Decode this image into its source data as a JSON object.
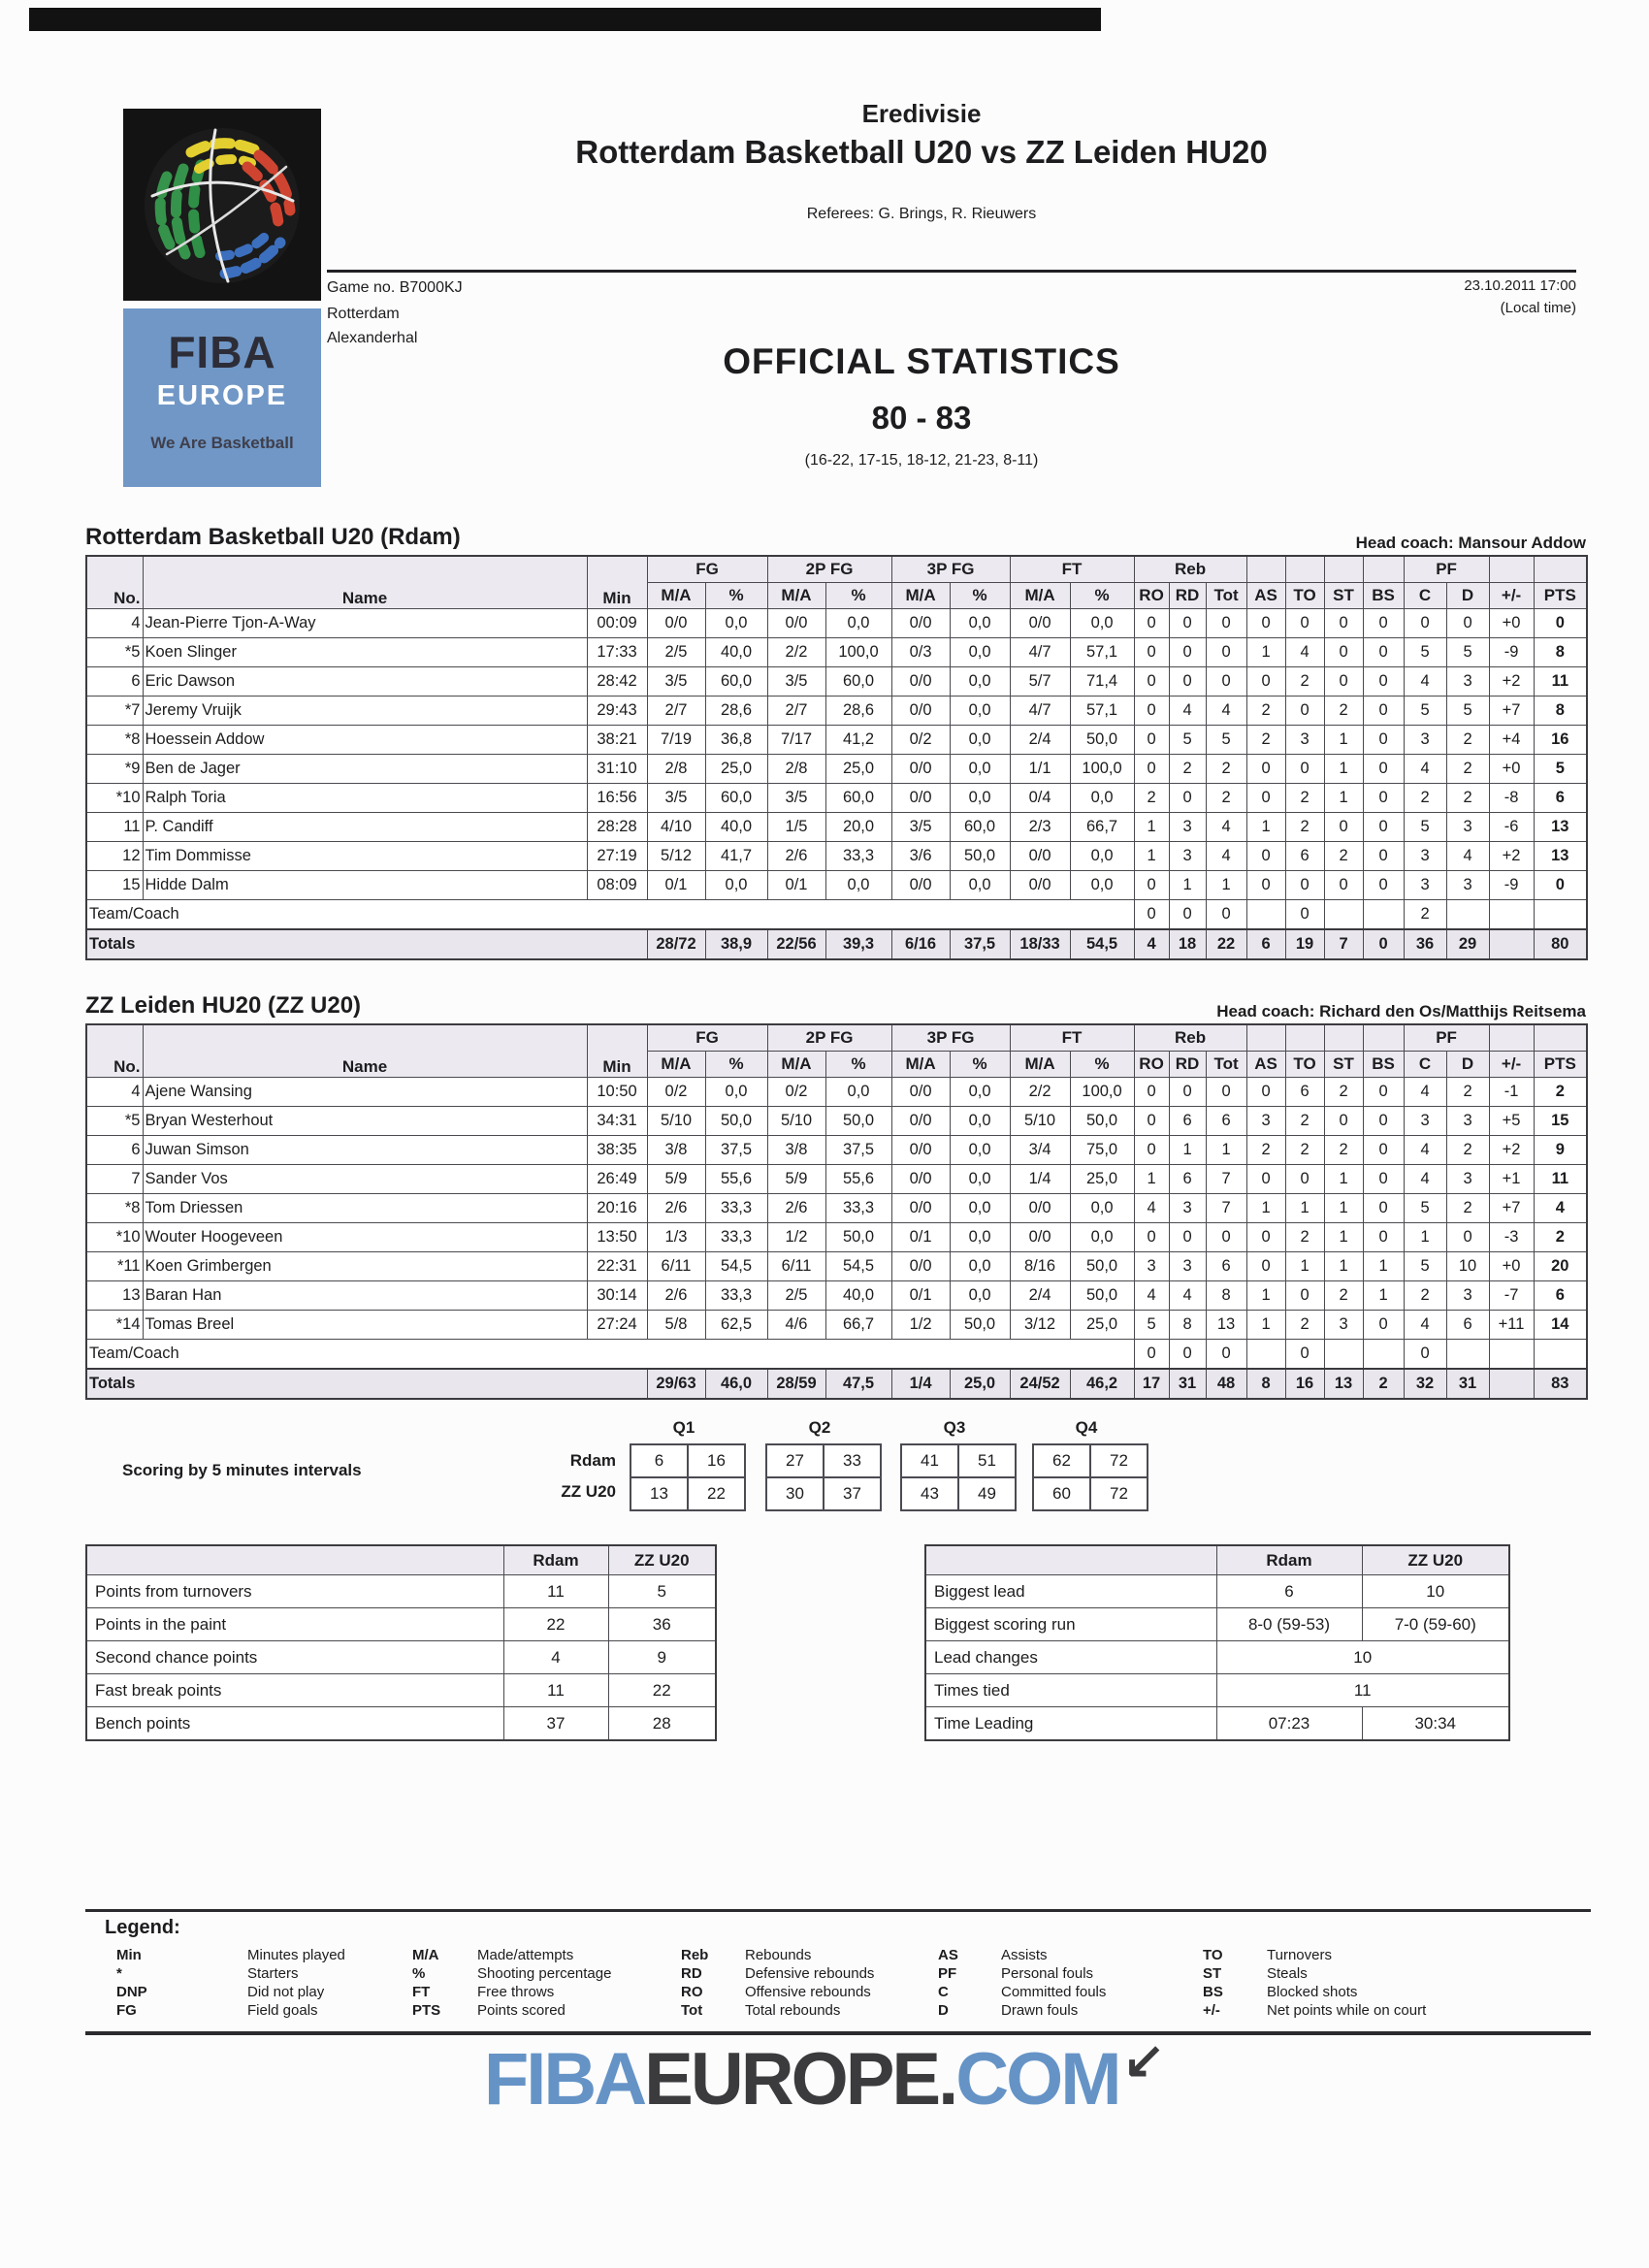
{
  "header": {
    "league": "Eredivisie",
    "title": "Rotterdam Basketball U20 vs ZZ Leiden HU20",
    "referees": "Referees: G. Brings, R. Rieuwers",
    "game_no": "Game no. B7000KJ",
    "city": "Rotterdam",
    "venue": "Alexanderhal",
    "datetime": "23.10.2011 17:00",
    "local_time": "(Local time)",
    "doc_title": "OFFICIAL STATISTICS",
    "score": "80 - 83",
    "quarter_scores": "(16-22, 17-15, 18-12, 21-23, 8-11)"
  },
  "logo": {
    "fiba": "FIBA",
    "europe": "EUROPE",
    "tagline": "We Are Basketball",
    "box_blue": "#7097c6"
  },
  "stat_header": {
    "no": "No.",
    "name": "Name",
    "min": "Min",
    "ma": "M/A",
    "pct": "%",
    "fg": "FG",
    "p2": "2P FG",
    "p3": "3P FG",
    "ft": "FT",
    "reb": "Reb",
    "ro": "RO",
    "rd": "RD",
    "tot": "Tot",
    "as": "AS",
    "to": "TO",
    "st": "ST",
    "bs": "BS",
    "pf": "PF",
    "c": "C",
    "d": "D",
    "pm": "+/-",
    "pts": "PTS",
    "team_row": "Team/Coach",
    "totals": "Totals"
  },
  "teams": [
    {
      "title": "Rotterdam Basketball U20 (Rdam)",
      "coach": "Head coach: Mansour Addow",
      "players": [
        [
          "4",
          "Jean-Pierre Tjon-A-Way",
          "00:09",
          "0/0",
          "0,0",
          "0/0",
          "0,0",
          "0/0",
          "0,0",
          "0/0",
          "0,0",
          "0",
          "0",
          "0",
          "0",
          "0",
          "0",
          "0",
          "0",
          "0",
          "+0",
          "0"
        ],
        [
          "*5",
          "Koen Slinger",
          "17:33",
          "2/5",
          "40,0",
          "2/2",
          "100,0",
          "0/3",
          "0,0",
          "4/7",
          "57,1",
          "0",
          "0",
          "0",
          "1",
          "4",
          "0",
          "0",
          "5",
          "5",
          "-9",
          "8"
        ],
        [
          "6",
          "Eric Dawson",
          "28:42",
          "3/5",
          "60,0",
          "3/5",
          "60,0",
          "0/0",
          "0,0",
          "5/7",
          "71,4",
          "0",
          "0",
          "0",
          "0",
          "2",
          "0",
          "0",
          "4",
          "3",
          "+2",
          "11"
        ],
        [
          "*7",
          "Jeremy Vruijk",
          "29:43",
          "2/7",
          "28,6",
          "2/7",
          "28,6",
          "0/0",
          "0,0",
          "4/7",
          "57,1",
          "0",
          "4",
          "4",
          "2",
          "0",
          "2",
          "0",
          "5",
          "5",
          "+7",
          "8"
        ],
        [
          "*8",
          "Hoessein Addow",
          "38:21",
          "7/19",
          "36,8",
          "7/17",
          "41,2",
          "0/2",
          "0,0",
          "2/4",
          "50,0",
          "0",
          "5",
          "5",
          "2",
          "3",
          "1",
          "0",
          "3",
          "2",
          "+4",
          "16"
        ],
        [
          "*9",
          "Ben de Jager",
          "31:10",
          "2/8",
          "25,0",
          "2/8",
          "25,0",
          "0/0",
          "0,0",
          "1/1",
          "100,0",
          "0",
          "2",
          "2",
          "0",
          "0",
          "1",
          "0",
          "4",
          "2",
          "+0",
          "5"
        ],
        [
          "*10",
          "Ralph Toria",
          "16:56",
          "3/5",
          "60,0",
          "3/5",
          "60,0",
          "0/0",
          "0,0",
          "0/4",
          "0,0",
          "2",
          "0",
          "2",
          "0",
          "2",
          "1",
          "0",
          "2",
          "2",
          "-8",
          "6"
        ],
        [
          "11",
          "P. Candiff",
          "28:28",
          "4/10",
          "40,0",
          "1/5",
          "20,0",
          "3/5",
          "60,0",
          "2/3",
          "66,7",
          "1",
          "3",
          "4",
          "1",
          "2",
          "0",
          "0",
          "5",
          "3",
          "-6",
          "13"
        ],
        [
          "12",
          "Tim Dommisse",
          "27:19",
          "5/12",
          "41,7",
          "2/6",
          "33,3",
          "3/6",
          "50,0",
          "0/0",
          "0,0",
          "1",
          "3",
          "4",
          "0",
          "6",
          "2",
          "0",
          "3",
          "4",
          "+2",
          "13"
        ],
        [
          "15",
          "Hidde Dalm",
          "08:09",
          "0/1",
          "0,0",
          "0/1",
          "0,0",
          "0/0",
          "0,0",
          "0/0",
          "0,0",
          "0",
          "1",
          "1",
          "0",
          "0",
          "0",
          "0",
          "3",
          "3",
          "-9",
          "0"
        ]
      ],
      "team_row": [
        "0",
        "0",
        "0",
        "",
        "0",
        "",
        "",
        "2",
        "",
        "",
        ""
      ],
      "totals": [
        "28/72",
        "38,9",
        "22/56",
        "39,3",
        "6/16",
        "37,5",
        "18/33",
        "54,5",
        "4",
        "18",
        "22",
        "6",
        "19",
        "7",
        "0",
        "36",
        "29",
        "",
        "80"
      ]
    },
    {
      "title": "ZZ Leiden HU20 (ZZ U20)",
      "coach": "Head coach: Richard den Os/Matthijs Reitsema",
      "players": [
        [
          "4",
          "Ajene Wansing",
          "10:50",
          "0/2",
          "0,0",
          "0/2",
          "0,0",
          "0/0",
          "0,0",
          "2/2",
          "100,0",
          "0",
          "0",
          "0",
          "0",
          "6",
          "2",
          "0",
          "4",
          "2",
          "-1",
          "2"
        ],
        [
          "*5",
          "Bryan Westerhout",
          "34:31",
          "5/10",
          "50,0",
          "5/10",
          "50,0",
          "0/0",
          "0,0",
          "5/10",
          "50,0",
          "0",
          "6",
          "6",
          "3",
          "2",
          "0",
          "0",
          "3",
          "3",
          "+5",
          "15"
        ],
        [
          "6",
          "Juwan Simson",
          "38:35",
          "3/8",
          "37,5",
          "3/8",
          "37,5",
          "0/0",
          "0,0",
          "3/4",
          "75,0",
          "0",
          "1",
          "1",
          "2",
          "2",
          "2",
          "0",
          "4",
          "2",
          "+2",
          "9"
        ],
        [
          "7",
          "Sander Vos",
          "26:49",
          "5/9",
          "55,6",
          "5/9",
          "55,6",
          "0/0",
          "0,0",
          "1/4",
          "25,0",
          "1",
          "6",
          "7",
          "0",
          "0",
          "1",
          "0",
          "4",
          "3",
          "+1",
          "11"
        ],
        [
          "*8",
          "Tom Driessen",
          "20:16",
          "2/6",
          "33,3",
          "2/6",
          "33,3",
          "0/0",
          "0,0",
          "0/0",
          "0,0",
          "4",
          "3",
          "7",
          "1",
          "1",
          "1",
          "0",
          "5",
          "2",
          "+7",
          "4"
        ],
        [
          "*10",
          "Wouter Hoogeveen",
          "13:50",
          "1/3",
          "33,3",
          "1/2",
          "50,0",
          "0/1",
          "0,0",
          "0/0",
          "0,0",
          "0",
          "0",
          "0",
          "0",
          "2",
          "1",
          "0",
          "1",
          "0",
          "-3",
          "2"
        ],
        [
          "*11",
          "Koen Grimbergen",
          "22:31",
          "6/11",
          "54,5",
          "6/11",
          "54,5",
          "0/0",
          "0,0",
          "8/16",
          "50,0",
          "3",
          "3",
          "6",
          "0",
          "1",
          "1",
          "1",
          "5",
          "10",
          "+0",
          "20"
        ],
        [
          "13",
          "Baran Han",
          "30:14",
          "2/6",
          "33,3",
          "2/5",
          "40,0",
          "0/1",
          "0,0",
          "2/4",
          "50,0",
          "4",
          "4",
          "8",
          "1",
          "0",
          "2",
          "1",
          "2",
          "3",
          "-7",
          "6"
        ],
        [
          "*14",
          "Tomas Breel",
          "27:24",
          "5/8",
          "62,5",
          "4/6",
          "66,7",
          "1/2",
          "50,0",
          "3/12",
          "25,0",
          "5",
          "8",
          "13",
          "1",
          "2",
          "3",
          "0",
          "4",
          "6",
          "+11",
          "14"
        ]
      ],
      "team_row": [
        "0",
        "0",
        "0",
        "",
        "0",
        "",
        "",
        "0",
        "",
        "",
        ""
      ],
      "totals": [
        "29/63",
        "46,0",
        "28/59",
        "47,5",
        "1/4",
        "25,0",
        "24/52",
        "46,2",
        "17",
        "31",
        "48",
        "8",
        "16",
        "13",
        "2",
        "32",
        "31",
        "",
        "83"
      ]
    }
  ],
  "intervals": {
    "label": "Scoring by 5 minutes intervals",
    "quarters": [
      "Q1",
      "Q2",
      "Q3",
      "Q4"
    ],
    "rows": [
      {
        "team": "Rdam",
        "values": [
          [
            "6",
            "16"
          ],
          [
            "27",
            "33"
          ],
          [
            "41",
            "51"
          ],
          [
            "62",
            "72"
          ]
        ]
      },
      {
        "team": "ZZ U20",
        "values": [
          [
            "13",
            "22"
          ],
          [
            "30",
            "37"
          ],
          [
            "43",
            "49"
          ],
          [
            "60",
            "72"
          ]
        ]
      }
    ]
  },
  "comparison_left": {
    "headers": [
      "Rdam",
      "ZZ U20"
    ],
    "rows": [
      {
        "label": "Points from turnovers",
        "values": [
          "11",
          "5"
        ]
      },
      {
        "label": "Points in the paint",
        "values": [
          "22",
          "36"
        ]
      },
      {
        "label": "Second chance points",
        "values": [
          "4",
          "9"
        ]
      },
      {
        "label": "Fast break points",
        "values": [
          "11",
          "22"
        ]
      },
      {
        "label": "Bench points",
        "values": [
          "37",
          "28"
        ]
      }
    ]
  },
  "comparison_right": {
    "headers": [
      "Rdam",
      "ZZ U20"
    ],
    "rows": [
      {
        "label": "Biggest lead",
        "values": [
          "6",
          "10"
        ]
      },
      {
        "label": "Biggest scoring run",
        "values": [
          "8-0 (59-53)",
          "7-0 (59-60)"
        ]
      },
      {
        "label": "Lead changes",
        "values": [
          "10"
        ],
        "span": true
      },
      {
        "label": "Times tied",
        "values": [
          "11"
        ],
        "span": true
      },
      {
        "label": "Time Leading",
        "values": [
          "07:23",
          "30:34"
        ]
      }
    ]
  },
  "legend": {
    "title": "Legend:",
    "columns": [
      [
        [
          "Min",
          "Minutes played"
        ],
        [
          "*",
          "Starters"
        ],
        [
          "DNP",
          "Did not play"
        ],
        [
          "FG",
          "Field goals"
        ]
      ],
      [
        [
          "M/A",
          "Made/attempts"
        ],
        [
          "%",
          "Shooting percentage"
        ],
        [
          "FT",
          "Free throws"
        ],
        [
          "PTS",
          "Points scored"
        ]
      ],
      [
        [
          "Reb",
          "Rebounds"
        ],
        [
          "RD",
          "Defensive rebounds"
        ],
        [
          "RO",
          "Offensive rebounds"
        ],
        [
          "Tot",
          "Total rebounds"
        ]
      ],
      [
        [
          "AS",
          "Assists"
        ],
        [
          "PF",
          "Personal fouls"
        ],
        [
          "C",
          "Committed fouls"
        ],
        [
          "D",
          "Drawn fouls"
        ]
      ],
      [
        [
          "TO",
          "Turnovers"
        ],
        [
          "ST",
          "Steals"
        ],
        [
          "BS",
          "Blocked shots"
        ],
        [
          "+/-",
          "Net points while on court"
        ]
      ]
    ]
  },
  "footer": {
    "fiba": "FIBA",
    "europe": "EUROPE",
    "dot": ".",
    "com": "COM",
    "arrow": "↙",
    "blue": "#6593c6",
    "dark": "#3b3b3d"
  }
}
